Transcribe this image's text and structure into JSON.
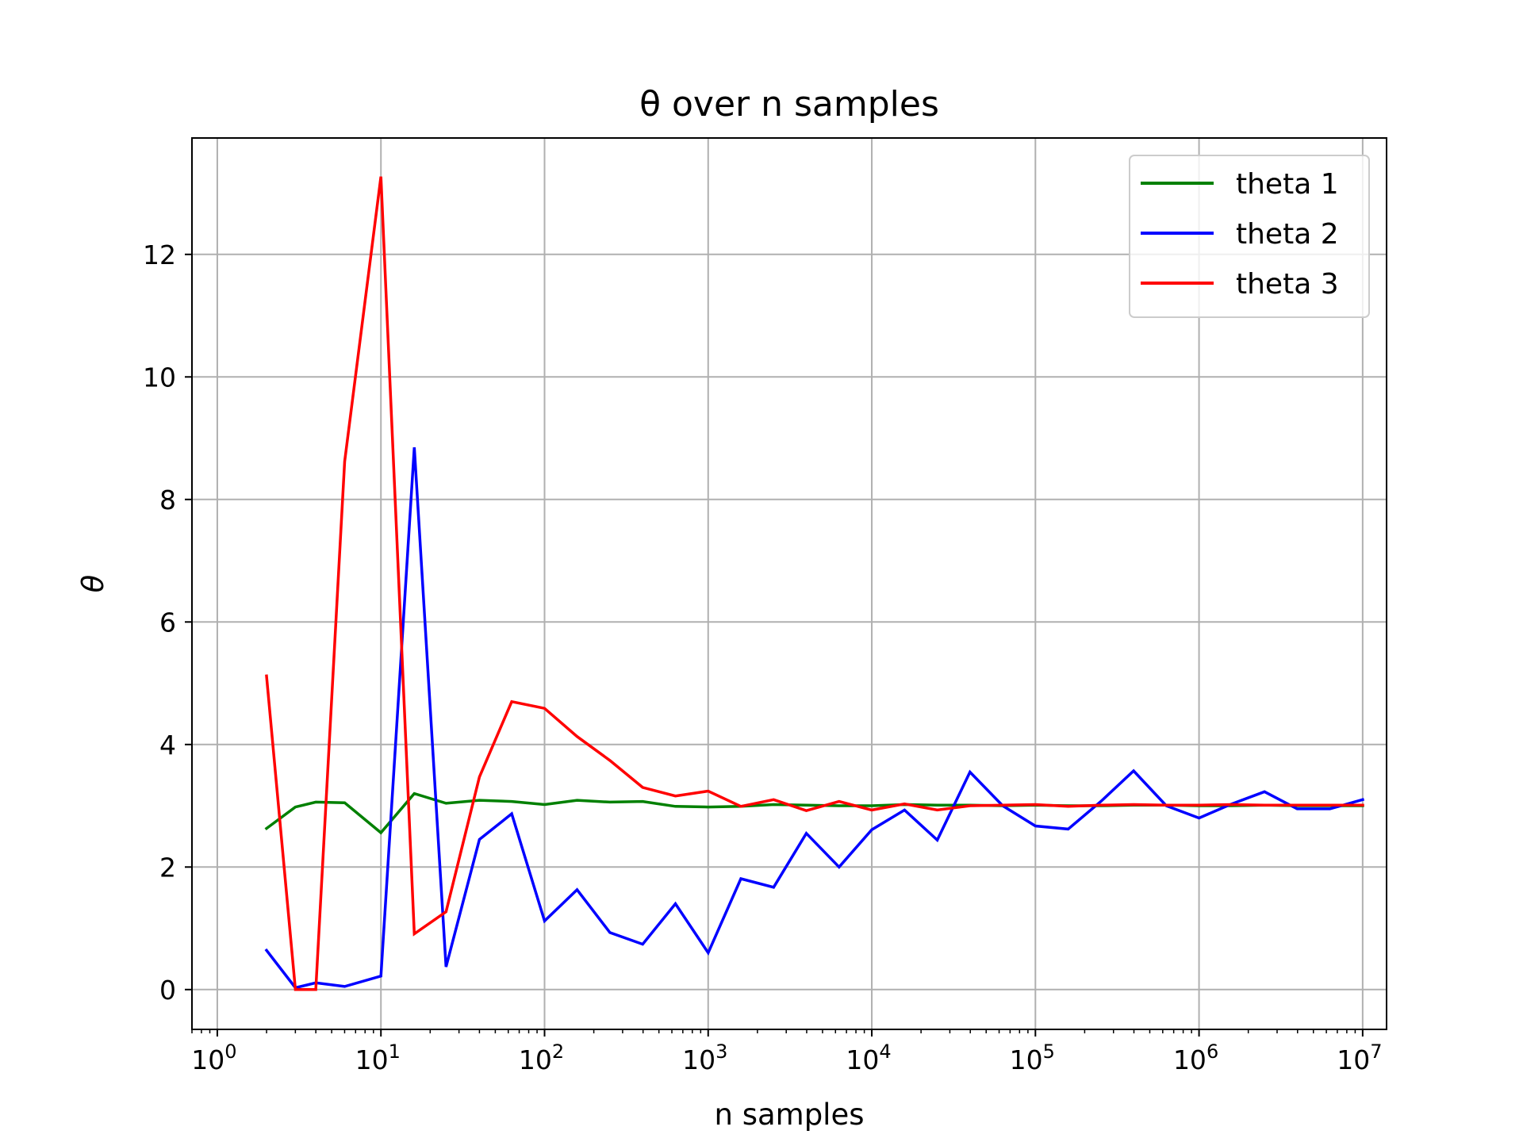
{
  "chart_data": {
    "type": "line",
    "title": "θ over n samples",
    "xlabel": "n samples",
    "ylabel": "θ",
    "xscale": "log",
    "xlim": [
      0.7,
      14000000
    ],
    "ylim": [
      -0.65,
      13.9
    ],
    "x_ticks": [
      1,
      10,
      100,
      1000,
      10000,
      100000,
      1000000,
      10000000
    ],
    "x_tick_labels": [
      "10",
      "10",
      "10",
      "10",
      "10",
      "10",
      "10",
      "10"
    ],
    "x_tick_exponents": [
      "0",
      "1",
      "2",
      "3",
      "4",
      "5",
      "6",
      "7"
    ],
    "y_ticks": [
      0,
      2,
      4,
      6,
      8,
      10,
      12
    ],
    "y_tick_labels": [
      "0",
      "2",
      "4",
      "6",
      "8",
      "10",
      "12"
    ],
    "grid": true,
    "legend_position": "top-right",
    "x": [
      2,
      3,
      4,
      6,
      10,
      16,
      25,
      40,
      63,
      100,
      158,
      251,
      398,
      631,
      1000,
      1585,
      2512,
      3981,
      6310,
      10000,
      15849,
      25119,
      39811,
      63096,
      100000,
      158489,
      251189,
      398107,
      630957,
      1000000,
      1584893,
      2511886,
      3981072,
      6309573,
      10000000
    ],
    "series": [
      {
        "name": "theta 1",
        "color": "#008000",
        "values": [
          2.63,
          2.98,
          3.06,
          3.05,
          2.56,
          3.2,
          3.04,
          3.09,
          3.07,
          3.02,
          3.09,
          3.06,
          3.07,
          2.99,
          2.98,
          2.99,
          3.02,
          3.01,
          3.0,
          3.0,
          3.02,
          3.01,
          3.01,
          3.0,
          3.01,
          3.0,
          3.0,
          3.01,
          3.01,
          3.0,
          3.0,
          3.01,
          3.0,
          3.0,
          3.0
        ]
      },
      {
        "name": "theta 2",
        "color": "#0000ff",
        "values": [
          0.64,
          0.03,
          0.11,
          0.05,
          0.22,
          8.85,
          0.37,
          2.45,
          2.87,
          1.12,
          1.63,
          0.93,
          0.74,
          1.4,
          0.6,
          1.81,
          1.67,
          2.55,
          2.0,
          2.61,
          2.93,
          2.44,
          3.55,
          3.0,
          2.67,
          2.62,
          3.07,
          3.57,
          3.0,
          2.8,
          3.03,
          3.23,
          2.95,
          2.95,
          3.1
        ]
      },
      {
        "name": "theta 3",
        "color": "#ff0000",
        "values": [
          5.12,
          0.0,
          0.0,
          8.62,
          13.27,
          0.91,
          1.27,
          3.47,
          4.7,
          4.59,
          4.13,
          3.74,
          3.3,
          3.16,
          3.24,
          2.99,
          3.1,
          2.92,
          3.07,
          2.93,
          3.03,
          2.93,
          3.0,
          3.01,
          3.02,
          2.99,
          3.01,
          3.02,
          3.01,
          3.01,
          3.02,
          3.01,
          3.01,
          3.01,
          3.01
        ]
      }
    ]
  }
}
